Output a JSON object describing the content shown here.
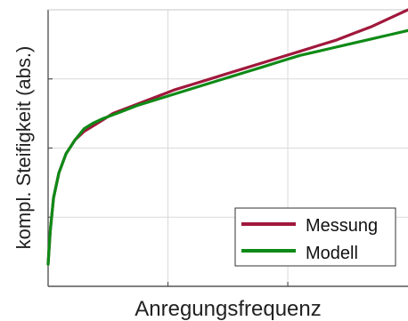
{
  "chart_data": {
    "type": "line",
    "title": "",
    "xlabel": "Anregungsfrequenz",
    "ylabel": "kompl. Steifigkeit (abs.)",
    "x_ticks_shown": false,
    "y_ticks_shown": false,
    "xlim": [
      0,
      100
    ],
    "ylim": [
      0,
      100
    ],
    "grid": true,
    "legend": {
      "position": "bottom-right"
    },
    "series": [
      {
        "name": "Messung",
        "color": "#a0183c",
        "x": [
          0,
          0.6,
          1.5,
          3,
          5,
          7.5,
          10,
          12.5,
          15,
          18,
          20,
          25,
          30,
          35,
          40,
          45,
          50,
          55,
          60,
          65,
          70,
          75,
          80,
          85,
          90,
          95,
          100
        ],
        "y": [
          8,
          20,
          32,
          41,
          48,
          53,
          56,
          58,
          60,
          62.5,
          63.5,
          66,
          68.5,
          71,
          73,
          75,
          77,
          79,
          81,
          83,
          85,
          87,
          89,
          91.5,
          94,
          97,
          100
        ]
      },
      {
        "name": "Modell",
        "color": "#0e8a16",
        "x": [
          0,
          0.6,
          1.5,
          3,
          5,
          7.5,
          10,
          12.5,
          15,
          20,
          25,
          30,
          35,
          40,
          45,
          50,
          55,
          60,
          65,
          70,
          75,
          80,
          85,
          90,
          95,
          100
        ],
        "y": [
          8,
          20,
          32,
          41,
          48,
          53,
          57,
          59,
          60.5,
          63,
          65.5,
          67.5,
          69.5,
          71.5,
          73.5,
          75.5,
          77.5,
          79.5,
          81.5,
          83.5,
          85,
          86.5,
          88,
          89.5,
          91,
          92.5
        ]
      }
    ]
  }
}
